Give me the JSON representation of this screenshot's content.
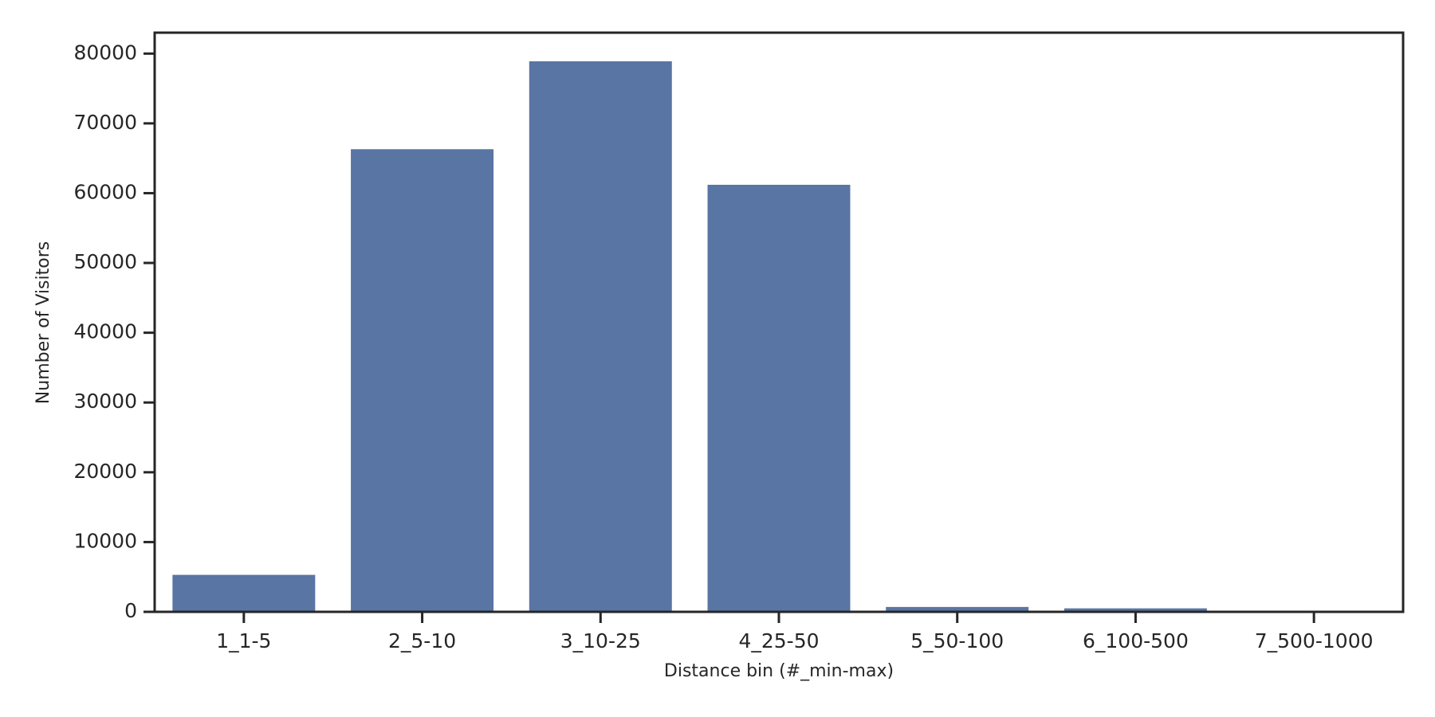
{
  "chart_data": {
    "type": "bar",
    "x_label": "Distance bin (#_min-max)",
    "y_label": "Number of Visitors",
    "categories": [
      "1_1-5",
      "2_5-10",
      "3_10-25",
      "4_25-50",
      "5_50-100",
      "6_100-500",
      "7_500-1000"
    ],
    "values": [
      5300,
      66300,
      78900,
      61200,
      700,
      500,
      20
    ],
    "color": "#5975a4",
    "ylim": [
      0,
      83000
    ],
    "yticks": [
      0,
      10000,
      20000,
      30000,
      40000,
      50000,
      60000,
      70000,
      80000
    ],
    "grid": false
  }
}
